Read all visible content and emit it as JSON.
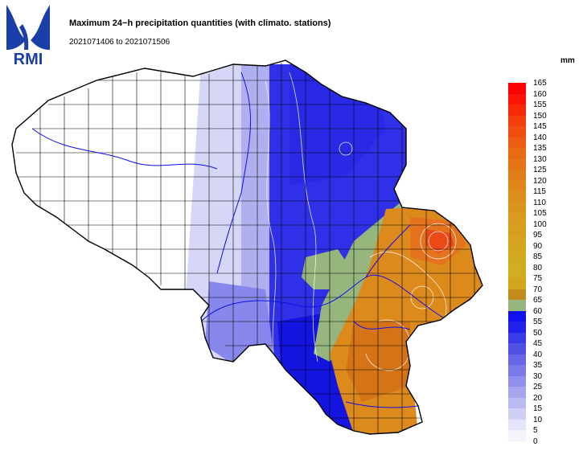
{
  "header": {
    "logo_text": "RMI",
    "title": "Maximum 24−h precipitation quantities (with climato. stations)",
    "date_range": "2021071406 to 2021071506"
  },
  "legend": {
    "unit": "mm",
    "ticks": [
      "165",
      "160",
      "155",
      "150",
      "145",
      "140",
      "135",
      "130",
      "125",
      "120",
      "115",
      "110",
      "105",
      "100",
      "95",
      "90",
      "85",
      "80",
      "75",
      "70",
      "65",
      "60",
      "55",
      "50",
      "45",
      "40",
      "35",
      "30",
      "25",
      "20",
      "15",
      "10",
      "5",
      "0"
    ],
    "colors": [
      "#ff0000",
      "#fb1405",
      "#f72a08",
      "#f43e0c",
      "#f04f0f",
      "#ec5c12",
      "#e96a14",
      "#e57516",
      "#e27e18",
      "#e0871a",
      "#dd8f1c",
      "#da951c",
      "#d89b1d",
      "#d69f1e",
      "#d5a31f",
      "#d3a81f",
      "#d2ac20",
      "#d3ad21",
      "#d2a71e",
      "#c28c1c",
      "#96b67e",
      "#1010f0",
      "#2121ec",
      "#3a3ae8",
      "#5050e4",
      "#6666e6",
      "#7a7ae8",
      "#9090ec",
      "#a6a6ef",
      "#bbbbf3",
      "#d0d0f6",
      "#e4e4fa",
      "#f4f4fd"
    ]
  },
  "map": {
    "region": "Belgium",
    "fill_colors": {
      "dry": "#ffffff",
      "light_blue": "#d6d6f6",
      "mid_blue": "#8888ec",
      "blue": "#3030e8",
      "deep_blue": "#1414e0",
      "green": "#96b67e",
      "orange": "#dd8a1c",
      "dark_orange": "#d57416",
      "red": "#ea4a18"
    }
  }
}
